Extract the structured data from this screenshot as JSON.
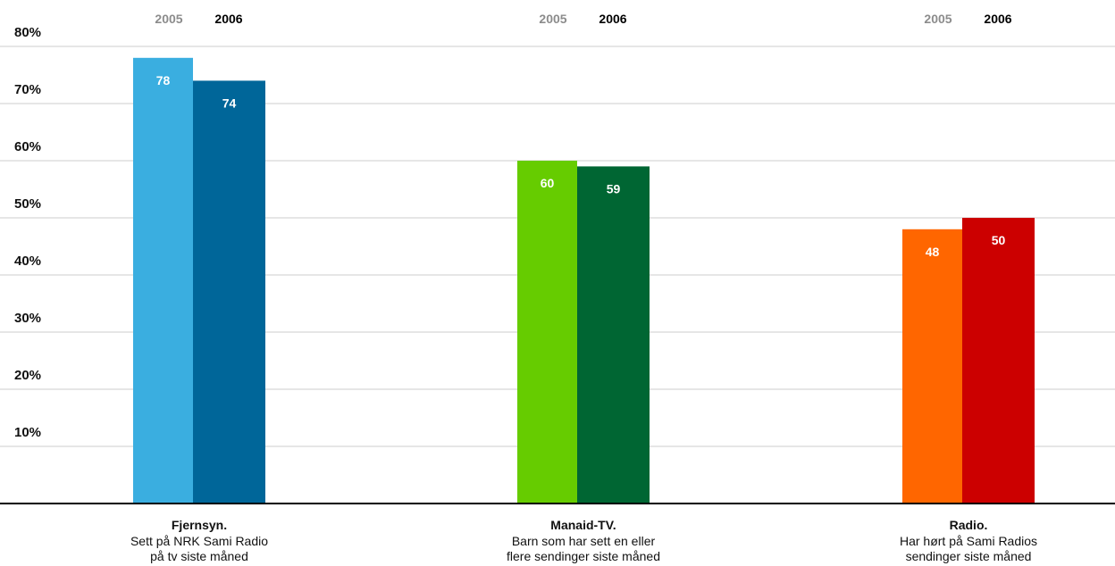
{
  "chart_data": {
    "type": "bar",
    "title": "",
    "xlabel": "",
    "ylabel": "",
    "ylim": [
      0,
      87
    ],
    "y_ticks": [
      10,
      20,
      30,
      40,
      50,
      60,
      70,
      80
    ],
    "y_tick_labels": [
      "10%",
      "20%",
      "30%",
      "40%",
      "50%",
      "60%",
      "70%",
      "80%"
    ],
    "grid": true,
    "legend_placement": "top, repeated above each category",
    "categories": [
      {
        "title": "Fjernsyn.",
        "subtitle": [
          "Sett på NRK Sami Radio",
          "på tv siste måned"
        ]
      },
      {
        "title": "Manaid-TV.",
        "subtitle": [
          "Barn som har sett en eller",
          "flere sendinger siste måned"
        ]
      },
      {
        "title": "Radio.",
        "subtitle": [
          "Har hørt på Sami Radios",
          "sendinger siste måned"
        ]
      }
    ],
    "series": [
      {
        "name": "2005",
        "values": [
          78,
          60,
          48
        ],
        "colors": [
          "#3aaee0",
          "#66cc00",
          "#ff6600"
        ]
      },
      {
        "name": "2006",
        "values": [
          74,
          59,
          50
        ],
        "colors": [
          "#006699",
          "#006633",
          "#cc0000"
        ]
      }
    ]
  }
}
